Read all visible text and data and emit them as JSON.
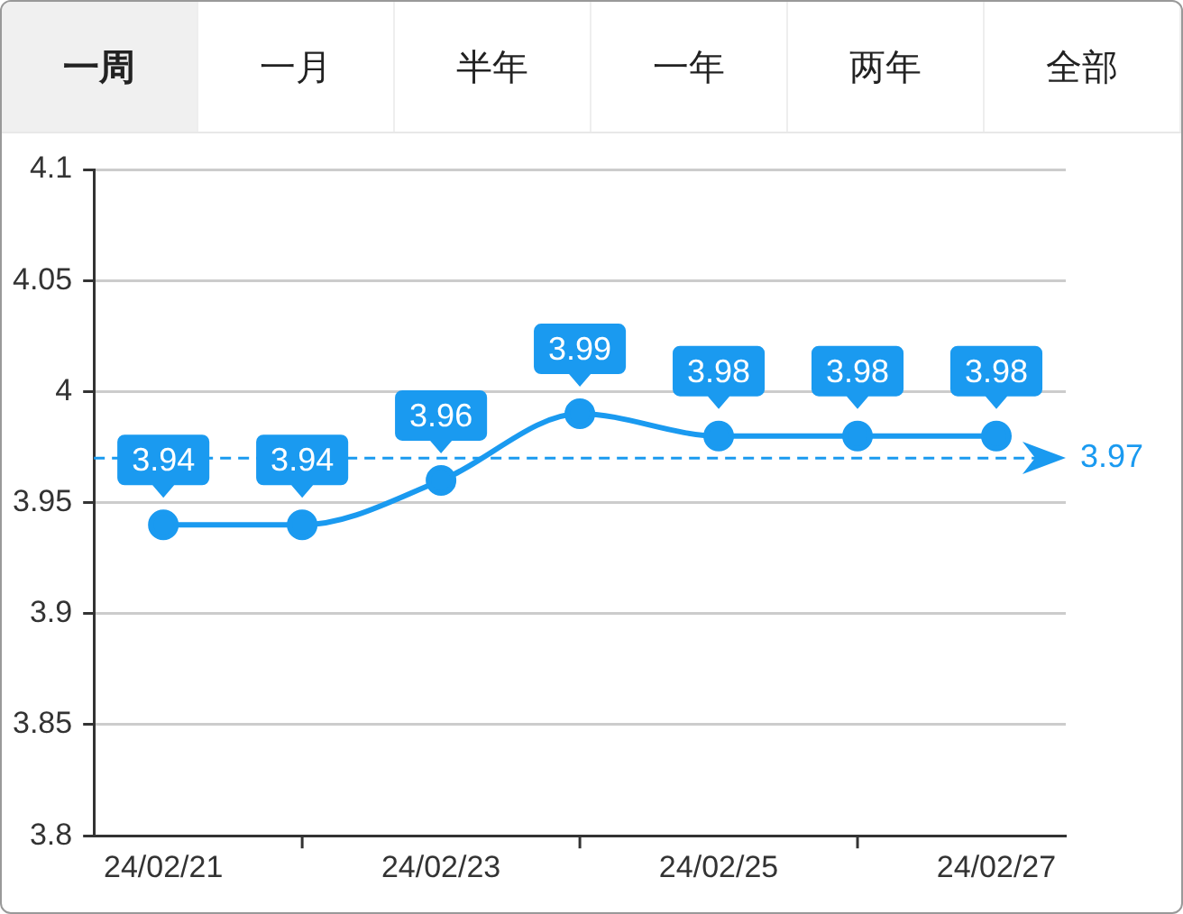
{
  "chart_data": {
    "type": "line",
    "annotations": [
      "一周",
      "一月",
      "半年",
      "一年",
      "两年",
      "全部"
    ],
    "categories": [
      "24/02/21",
      null,
      "24/02/23",
      null,
      "24/02/25",
      null,
      "24/02/27"
    ],
    "series": [
      {
        "color": "#1a9af0",
        "values": [
          3.94,
          3.94,
          3.96,
          3.99,
          3.98,
          3.98,
          3.98
        ]
      }
    ],
    "ylim": [
      3.8,
      4.1
    ],
    "yticks": [
      3.8,
      3.85,
      3.9,
      3.95,
      4,
      4.05,
      4.1
    ],
    "grid": "y",
    "marker": "circle",
    "line_style": "solid",
    "data_labels": true,
    "ref_lines": [
      {
        "axis": "y",
        "value": 3.97,
        "label": "3.97",
        "color": "#1a9af0",
        "line_style": "dashed"
      }
    ]
  }
}
